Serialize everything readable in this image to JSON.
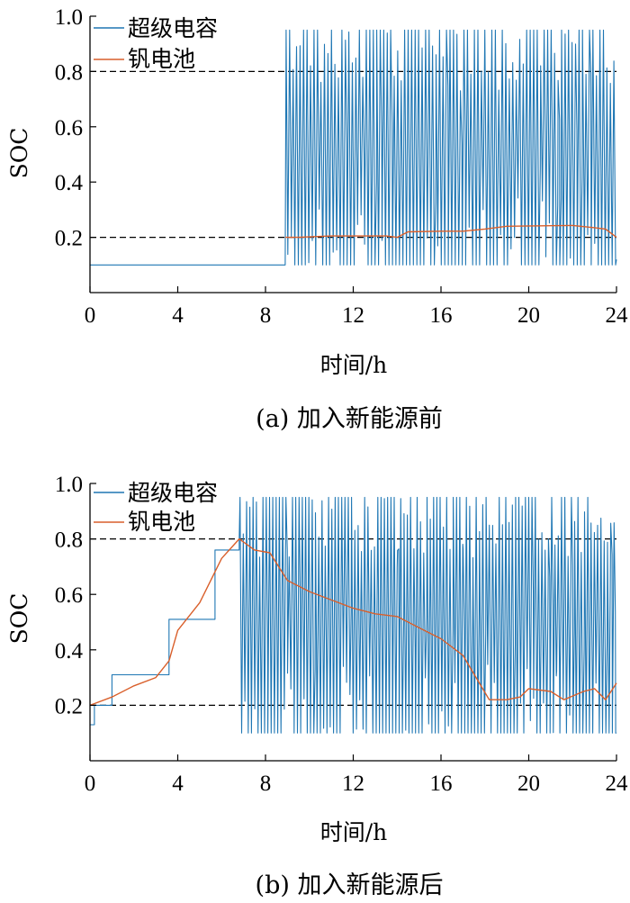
{
  "colors": {
    "supercap": "#1f77b4",
    "vanadium": "#d95f2b",
    "threshold": "#000000"
  },
  "chart_data": [
    {
      "type": "line",
      "caption": "(a) 加入新能源前",
      "xlabel": "时间/h",
      "ylabel": "SOC",
      "xlim": [
        0,
        24
      ],
      "ylim": [
        0,
        1.0
      ],
      "xticks": [
        0,
        4,
        8,
        12,
        16,
        20,
        24
      ],
      "yticks": [
        0.2,
        0.4,
        0.6,
        0.8,
        1.0
      ],
      "ytick_labels": [
        "0.2",
        "0.4",
        "0.6",
        "0.8",
        "1.0"
      ],
      "thresholds": [
        0.8,
        0.2
      ],
      "legend_position": "top-left",
      "series": [
        {
          "name": "超级电容",
          "color": "supercap",
          "style": "oscillating",
          "base": [
            [
              0,
              0.1
            ],
            [
              8.9,
              0.1
            ]
          ],
          "osc_range": [
            8.9,
            24.0
          ],
          "osc_low": 0.1,
          "osc_high": 0.95,
          "osc_count": 190,
          "end": [
            [
              24,
              0.12
            ]
          ]
        },
        {
          "name": "钒电池",
          "color": "vanadium",
          "style": "line",
          "points": [
            [
              8.9,
              0.2
            ],
            [
              9.5,
              0.2
            ],
            [
              11,
              0.205
            ],
            [
              13.5,
              0.205
            ],
            [
              14,
              0.2
            ],
            [
              14.5,
              0.22
            ],
            [
              16,
              0.222
            ],
            [
              17,
              0.222
            ],
            [
              18,
              0.23
            ],
            [
              19,
              0.24
            ],
            [
              21,
              0.242
            ],
            [
              22,
              0.243
            ],
            [
              23,
              0.235
            ],
            [
              23.5,
              0.23
            ],
            [
              24,
              0.2
            ]
          ]
        }
      ]
    },
    {
      "type": "line",
      "caption": "(b) 加入新能源后",
      "xlabel": "时间/h",
      "ylabel": "SOC",
      "xlim": [
        0,
        24
      ],
      "ylim": [
        0,
        1.0
      ],
      "xticks": [
        0,
        4,
        8,
        12,
        16,
        20,
        24
      ],
      "yticks": [
        0.2,
        0.4,
        0.6,
        0.8,
        1.0
      ],
      "ytick_labels": [
        "0.2",
        "0.4",
        "0.6",
        "0.8",
        "1.0"
      ],
      "thresholds": [
        0.8,
        0.2
      ],
      "legend_position": "top-left",
      "series": [
        {
          "name": "超级电容",
          "color": "supercap",
          "style": "oscillating",
          "base": [
            [
              0,
              0.13
            ],
            [
              0.2,
              0.13
            ],
            [
              0.2,
              0.2
            ],
            [
              1.0,
              0.2
            ],
            [
              1.0,
              0.31
            ],
            [
              3.6,
              0.31
            ],
            [
              3.6,
              0.51
            ],
            [
              5.7,
              0.51
            ],
            [
              5.7,
              0.76
            ],
            [
              6.8,
              0.76
            ],
            [
              6.8,
              0.8
            ]
          ],
          "osc_range": [
            6.8,
            24.0
          ],
          "osc_low": 0.1,
          "osc_high": 0.95,
          "osc_count": 230,
          "end": [
            [
              24,
              0.1
            ]
          ]
        },
        {
          "name": "钒电池",
          "color": "vanadium",
          "style": "line",
          "points": [
            [
              0,
              0.2
            ],
            [
              1,
              0.23
            ],
            [
              2,
              0.27
            ],
            [
              3,
              0.3
            ],
            [
              3.6,
              0.36
            ],
            [
              4,
              0.47
            ],
            [
              5,
              0.57
            ],
            [
              6,
              0.73
            ],
            [
              6.8,
              0.8
            ],
            [
              7.5,
              0.76
            ],
            [
              8.2,
              0.75
            ],
            [
              9,
              0.65
            ],
            [
              10,
              0.61
            ],
            [
              11,
              0.58
            ],
            [
              12,
              0.55
            ],
            [
              13,
              0.53
            ],
            [
              14,
              0.52
            ],
            [
              15,
              0.48
            ],
            [
              16,
              0.44
            ],
            [
              17,
              0.38
            ],
            [
              18.2,
              0.22
            ],
            [
              19,
              0.22
            ],
            [
              19.6,
              0.23
            ],
            [
              20,
              0.26
            ],
            [
              21,
              0.25
            ],
            [
              21.6,
              0.22
            ],
            [
              22.5,
              0.25
            ],
            [
              23,
              0.26
            ],
            [
              23.5,
              0.22
            ],
            [
              24,
              0.28
            ]
          ]
        }
      ]
    }
  ]
}
